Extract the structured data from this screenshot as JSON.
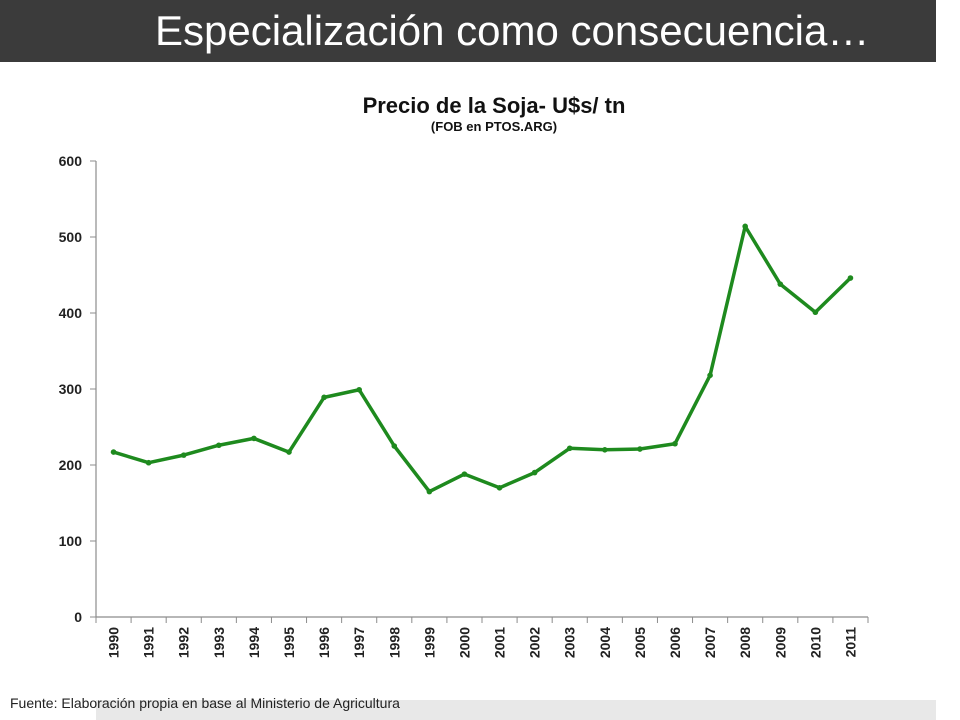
{
  "slide": {
    "title": "Especialización como consecuencia…",
    "source": "Fuente: Elaboración propia en base al Ministerio de Agricultura"
  },
  "colors": {
    "title_bar": "#3b3b3b",
    "series_line": "#1e8a1e",
    "axis": "#8c8c8c",
    "footer_band": "#e8e8e8"
  },
  "chart_data": {
    "type": "line",
    "title": "Precio de la Soja- U$s/ tn",
    "subtitle": "(FOB en PTOS.ARG)",
    "xlabel": "",
    "ylabel": "",
    "categories": [
      "1990",
      "1991",
      "1992",
      "1993",
      "1994",
      "1995",
      "1996",
      "1997",
      "1998",
      "1999",
      "2000",
      "2001",
      "2002",
      "2003",
      "2004",
      "2005",
      "2006",
      "2007",
      "2008",
      "2009",
      "2010",
      "2011"
    ],
    "series": [
      {
        "values": [
          217,
          203,
          213,
          226,
          235,
          217,
          289,
          299,
          225,
          165,
          188,
          170,
          190,
          222,
          220,
          221,
          228,
          318,
          514,
          438,
          401,
          446
        ]
      }
    ],
    "yticks": [
      0,
      100,
      200,
      300,
      400,
      500,
      600
    ],
    "ylim": [
      0,
      600
    ],
    "grid": false,
    "legend": "none"
  }
}
